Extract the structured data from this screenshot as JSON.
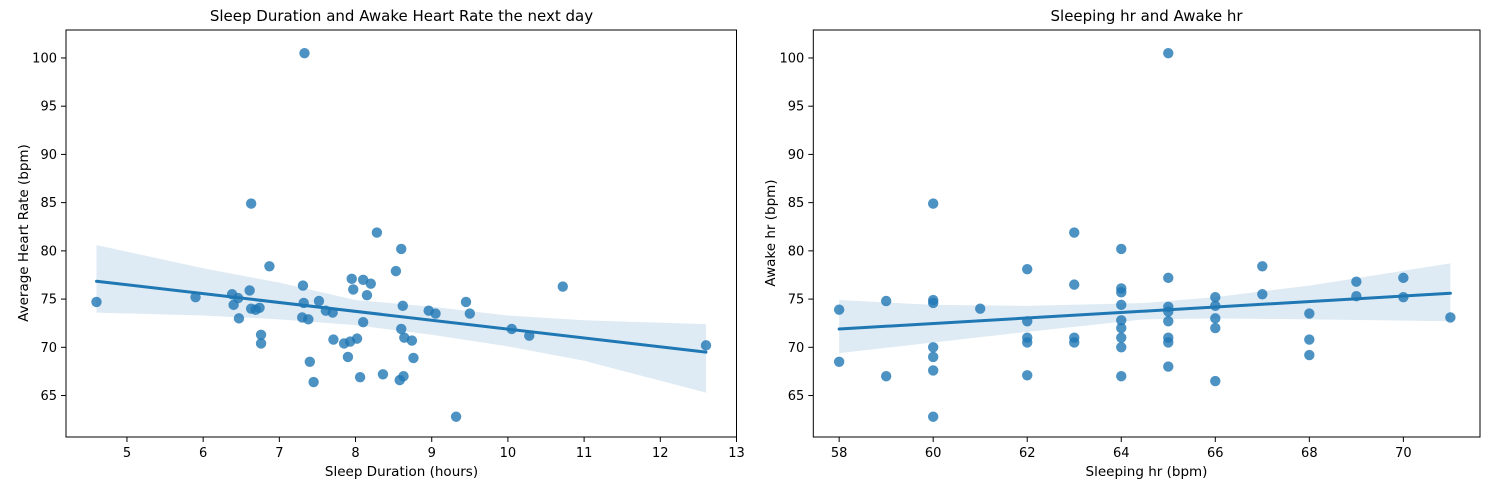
{
  "figure": {
    "background": "#ffffff"
  },
  "colors": {
    "accent": "#1f77b4",
    "point_fill": "#1f77b4",
    "point_opacity": 0.8,
    "band_fill": "#1f77b4",
    "band_opacity": 0.15,
    "axis_color": "#000000"
  },
  "chart_data": [
    {
      "type": "scatter",
      "title": "Sleep Duration and Awake Heart Rate the next day",
      "xlabel": "Sleep Duration (hours)",
      "ylabel": "Average Heart Rate (bpm)",
      "xlim": [
        4.2,
        13.0
      ],
      "ylim": [
        60.7,
        102.9
      ],
      "xticks": [
        5,
        6,
        7,
        8,
        9,
        10,
        11,
        12,
        13
      ],
      "yticks": [
        65,
        70,
        75,
        80,
        85,
        90,
        95,
        100
      ],
      "grid": false,
      "legend": null,
      "points": {
        "x": [
          4.6,
          5.9,
          6.38,
          6.4,
          6.46,
          6.47,
          6.61,
          6.63,
          6.63,
          6.69,
          6.74,
          6.76,
          6.76,
          6.87,
          7.3,
          7.31,
          7.32,
          7.33,
          7.38,
          7.4,
          7.45,
          7.52,
          7.61,
          7.7,
          7.71,
          7.85,
          7.9,
          7.93,
          7.95,
          7.97,
          8.02,
          8.06,
          8.1,
          8.1,
          8.15,
          8.2,
          8.28,
          8.36,
          8.53,
          8.58,
          8.6,
          8.6,
          8.62,
          8.63,
          8.64,
          8.74,
          8.76,
          8.96,
          9.05,
          9.32,
          9.45,
          9.5,
          10.05,
          10.28,
          10.72,
          12.6
        ],
        "y": [
          74.7,
          75.2,
          75.5,
          74.4,
          75.1,
          73.0,
          75.9,
          84.9,
          74.0,
          73.9,
          74.1,
          71.3,
          70.4,
          78.4,
          73.1,
          76.4,
          74.6,
          100.5,
          72.9,
          68.5,
          66.4,
          74.8,
          73.8,
          73.6,
          70.8,
          70.4,
          69.0,
          70.6,
          77.1,
          76.0,
          70.9,
          66.9,
          77.0,
          72.6,
          75.4,
          76.6,
          81.9,
          67.2,
          77.9,
          66.6,
          80.2,
          71.9,
          74.3,
          67.0,
          71.0,
          70.7,
          68.9,
          73.8,
          73.5,
          62.8,
          74.7,
          73.5,
          71.9,
          71.2,
          76.3,
          70.2
        ]
      },
      "regression_line": {
        "x": [
          4.6,
          12.6
        ],
        "y": [
          76.85,
          69.5
        ]
      },
      "ci_band": {
        "x": [
          4.6,
          6.0,
          7.0,
          8.0,
          9.0,
          10.0,
          11.0,
          12.6
        ],
        "upper": [
          80.6,
          78.2,
          76.7,
          74.9,
          74.2,
          73.3,
          72.8,
          72.4
        ],
        "lower": [
          73.6,
          73.3,
          72.9,
          72.3,
          71.3,
          70.1,
          68.6,
          65.3
        ]
      }
    },
    {
      "type": "scatter",
      "title": "Sleeping hr and Awake hr",
      "xlabel": "Sleeping hr (bpm)",
      "ylabel": "Awake hr (bpm)",
      "xlim": [
        57.45,
        71.63
      ],
      "ylim": [
        60.7,
        102.9
      ],
      "xticks": [
        58,
        60,
        62,
        64,
        66,
        68,
        70
      ],
      "yticks": [
        65,
        70,
        75,
        80,
        85,
        90,
        95,
        100
      ],
      "grid": false,
      "legend": null,
      "points": {
        "x": [
          58,
          58,
          59,
          59,
          60,
          60,
          60,
          60,
          60,
          60,
          60,
          61,
          62,
          62,
          62,
          62,
          62,
          63,
          63,
          63,
          63,
          64,
          64,
          64,
          64,
          64,
          64,
          64,
          64,
          64,
          65,
          65,
          65,
          65,
          65,
          65,
          65,
          65,
          66,
          66,
          66,
          66,
          66,
          67,
          67,
          68,
          68,
          68,
          69,
          69,
          70,
          70,
          71
        ],
        "y": [
          73.9,
          68.5,
          74.8,
          67.0,
          84.9,
          74.9,
          74.6,
          70.0,
          69.0,
          67.6,
          62.8,
          74.0,
          78.1,
          72.7,
          71.0,
          70.5,
          67.1,
          81.9,
          76.5,
          71.0,
          70.5,
          80.2,
          76.1,
          75.7,
          74.4,
          72.8,
          72.0,
          71.0,
          70.0,
          67.0,
          100.5,
          77.2,
          74.2,
          73.7,
          72.7,
          71.0,
          70.5,
          68.0,
          75.2,
          74.3,
          73.0,
          72.0,
          66.5,
          78.4,
          75.5,
          73.5,
          70.8,
          69.2,
          76.8,
          75.3,
          77.2,
          75.2,
          73.1
        ]
      },
      "regression_line": {
        "x": [
          58,
          71
        ],
        "y": [
          71.9,
          75.6
        ]
      },
      "ci_band": {
        "x": [
          58,
          60,
          62,
          64.5,
          66,
          68,
          71
        ],
        "upper": [
          74.9,
          74.4,
          74.3,
          74.6,
          75.2,
          76.4,
          78.7
        ],
        "lower": [
          69.4,
          70.5,
          71.6,
          72.9,
          73.0,
          72.9,
          72.7
        ]
      }
    }
  ]
}
